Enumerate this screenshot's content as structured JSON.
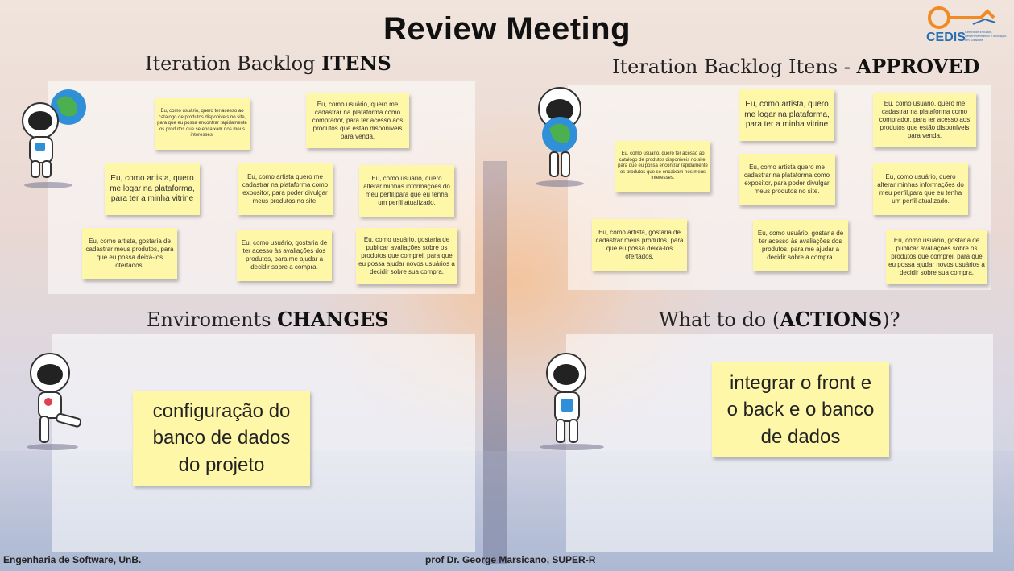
{
  "title": "Review Meeting",
  "logo": {
    "name": "CEDIS",
    "subtitle": "Centro de Estudos, Desenvolvimento e Inovação em Software"
  },
  "sections": {
    "backlog": {
      "title_plain": "Iteration Backlog ",
      "title_bold": "ITENS"
    },
    "approved": {
      "title_plain": "Iteration Backlog Itens - ",
      "title_bold": "APPROVED"
    },
    "changes": {
      "title_plain": "Enviroments ",
      "title_bold": "CHANGES"
    },
    "actions": {
      "title_plain": "What to do (",
      "title_bold": "ACTIONS",
      "title_tail": ")?"
    }
  },
  "backlog_notes": [
    "Eu, como usuário, quero ter acesso ao catalogo de produtos disponiveis no site, para que eu possa encontrar rapidamente os produtos que se encaixam nos meus interesses.",
    "Eu, como usuário, quero me cadastrar na plataforma como comprador, para ter acesso aos produtos que estão disponíveis para venda.",
    "Eu, como artista, quero me logar na plataforma, para ter a minha vitrine",
    "Eu, como artista quero me cadastrar na plataforma como expositor, para poder divulgar meus produtos no site.",
    "Eu, como usuário, quero alterar minhas informações do meu perfil,para que eu tenha um perfil atualizado.",
    "Eu, como artista, gostaria de cadastrar meus produtos, para que eu possa deixá-los ofertados.",
    "Eu, como usuário, gostaria de ter acesso às avaliações dos produtos, para me ajudar a decidir sobre a compra.",
    "Eu, como usuário, gostaria de publicar avaliações sobre os produtos que comprei, para que eu possa ajudar novos usuários a decidir sobre sua compra."
  ],
  "approved_notes": [
    "Eu, como artista, quero me logar na plataforma, para ter a minha vitrine",
    "Eu, como usuário, quero me cadastrar na plataforma como comprador, para ter acesso aos produtos que estão disponíveis para venda.",
    "Eu, como usuário, quero ter acesso ao catalogo de produtos disponiveis no site, para que eu possa encontrar rapidamente os produtos que se encaixam nos meus interesses.",
    "Eu, como artista quero me cadastrar na plataforma como expositor, para poder divulgar meus produtos no site.",
    "Eu, como usuário, quero alterar minhas informações do meu perfil,para que eu tenha um perfil atualizado.",
    "Eu, como artista, gostaria de cadastrar meus produtos, para que eu possa deixá-los ofertados.",
    "Eu, como usuário, gostaria de ter acesso às avaliações dos produtos, para me ajudar a decidir sobre a compra.",
    "Eu, como usuário, gostaria de publicar avaliações sobre os produtos que comprei, para que eu possa ajudar novos usuários a decidir sobre sua compra."
  ],
  "changes_note": "configuração do banco de dados do projeto",
  "actions_note": "integrar o front e o back e o banco de dados",
  "footer": {
    "left": "Engenharia de Software, UnB.",
    "center": "prof Dr. George Marsicano, SUPER-R"
  },
  "colors": {
    "note": "#fff7a8",
    "logo_orange": "#f08a24",
    "logo_blue": "#2a6fb3"
  }
}
